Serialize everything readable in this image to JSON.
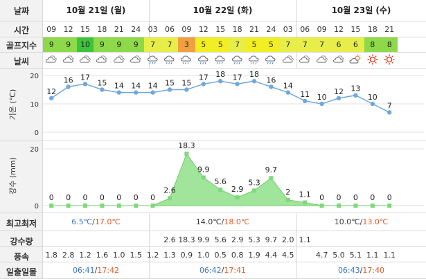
{
  "row_labels": {
    "date": "날짜",
    "time": "시간",
    "golf_index": "골프지수",
    "weather": "날씨",
    "temperature": "기온 (℃)",
    "rain": "강수 (mm)",
    "min_max": "최고최저",
    "precipitation": "강수량",
    "wind": "풍속",
    "sunrise_sunset": "일출일몰"
  },
  "days": [
    {
      "label": "10월 21일 (월)",
      "minmax_low": "6.5℃",
      "minmax_high": "17.0℃",
      "sunrise": "06:41",
      "sunset": "17:42"
    },
    {
      "label": "10월 22일 (화)",
      "minmax_low": "14.0℃",
      "minmax_high": "18.0℃",
      "sunrise": "06:42",
      "sunset": "17:41"
    },
    {
      "label": "10월 23일 (수)",
      "minmax_low": "10.0℃",
      "minmax_high": "13.0℃",
      "sunrise": "06:43",
      "sunset": "17:40"
    }
  ],
  "separator": "/",
  "hours": [
    "09",
    "12",
    "15",
    "18",
    "21",
    "24",
    "03",
    "06",
    "09",
    "12",
    "15",
    "18",
    "21",
    "24",
    "03",
    "06",
    "09",
    "12",
    "15",
    "18",
    "21"
  ],
  "golf_index": [
    "9",
    "9",
    "10",
    "9",
    "9",
    "9",
    "7",
    "7",
    "3",
    "5",
    "5",
    "7",
    "5",
    "5",
    "7",
    "7",
    "7",
    "6",
    "6",
    "8",
    "8"
  ],
  "golf_colors": {
    "10": "#3cc43c",
    "9": "#8ed94a",
    "8": "#8ed94a",
    "7": "#e7ee4a",
    "6": "#e7ee4a",
    "5": "#f1ee22",
    "3": "#f0a040"
  },
  "weather_icons": [
    "cloud-icon",
    "cloud-icon",
    "cloud-icon",
    "cloud-icon",
    "cloud-icon",
    "cloud-icon",
    "rain-cloud-icon",
    "rain-cloud-icon",
    "rain-cloud-icon",
    "rain-cloud-icon",
    "rain-cloud-icon",
    "rain-cloud-icon",
    "rain-cloud-icon",
    "rain-cloud-icon",
    "cloud-icon",
    "cloud-icon",
    "cloud-icon",
    "cloud-icon",
    "partly-sunny-icon",
    "sun-icon",
    "sun-icon"
  ],
  "precipitation": [
    "",
    "",
    "",
    "",
    "",
    "",
    "",
    "2.6",
    "18.3",
    "9.9",
    "5.6",
    "2.9",
    "5.3",
    "9.7",
    "2.0",
    "1.1",
    "",
    "",
    "",
    "",
    ""
  ],
  "wind": [
    "1.8",
    "2.8",
    "1.2",
    "1.6",
    "1.0",
    "1.5",
    "1.2",
    "1.3",
    "0.9",
    "1.0",
    "0.5",
    "0.8",
    "1.9",
    "4.4",
    "4.5",
    "",
    "4.7",
    "5.0",
    "5.1",
    "1.1",
    "1.1"
  ],
  "chart_data": [
    {
      "type": "line",
      "x": [
        "09",
        "12",
        "15",
        "18",
        "21",
        "24",
        "03",
        "06",
        "09",
        "12",
        "15",
        "18",
        "21",
        "24",
        "03",
        "06",
        "09",
        "12",
        "15",
        "18",
        "21"
      ],
      "values": [
        12,
        16,
        17,
        15,
        14,
        14,
        14,
        15,
        15,
        17,
        18,
        17,
        18,
        16,
        14,
        11,
        10,
        12,
        13,
        10,
        7
      ],
      "ylim": [
        0,
        20
      ],
      "yticks": [
        0,
        10,
        20
      ],
      "ylabel": "기온 (℃)",
      "line_color": "#6fa8dc"
    },
    {
      "type": "area",
      "x": [
        "09",
        "12",
        "15",
        "18",
        "21",
        "24",
        "03",
        "06",
        "09",
        "12",
        "15",
        "18",
        "21",
        "24",
        "03",
        "06",
        "09",
        "12",
        "15",
        "18",
        "21"
      ],
      "values": [
        0,
        0,
        0,
        0,
        0,
        0,
        0,
        2.6,
        18.3,
        9.9,
        5.6,
        2.9,
        5.3,
        9.7,
        2,
        1.1,
        0,
        0,
        0,
        0,
        0
      ],
      "labels": [
        "0",
        "0",
        "0",
        "0",
        "0",
        "0",
        "0",
        "2.6",
        "18.3",
        "9.9",
        "5.6",
        "2.9",
        "5.3",
        "9.7",
        "2",
        "1.1",
        "0",
        "0",
        "0",
        "0",
        "0"
      ],
      "ylim": [
        0,
        20
      ],
      "yticks": [
        0,
        20
      ],
      "ylabel": "강수 (mm)",
      "fill_color": "#8fe08a"
    }
  ]
}
